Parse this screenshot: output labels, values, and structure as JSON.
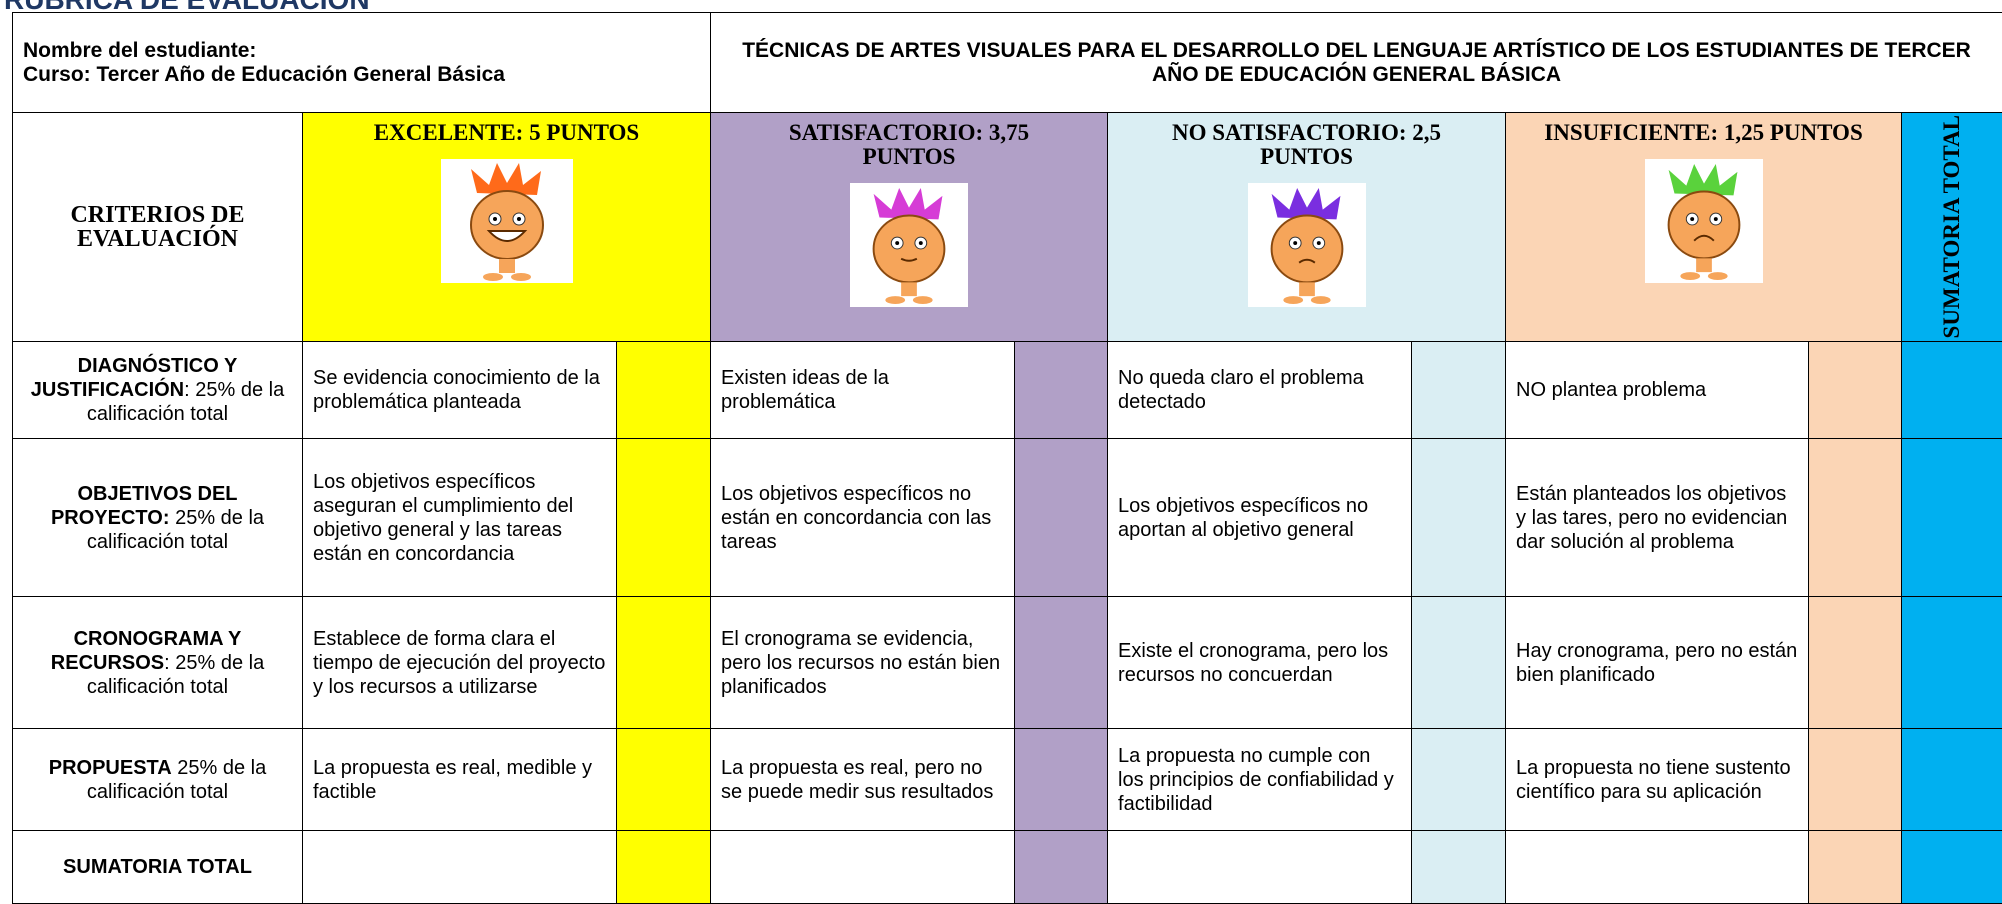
{
  "page_title": "RÚBRICA DE EVALUACIÓN",
  "header": {
    "student": "Nombre del estudiante:",
    "course": "Curso: Tercer Año de Educación General Básica",
    "title": "TÉCNICAS DE ARTES VISUALES PARA EL DESARROLLO DEL LENGUAJE ARTÍSTICO DE LOS ESTUDIANTES DE TERCER AÑO DE EDUCACIÓN GENERAL BÁSICA"
  },
  "criteria_header": "CRITERIOS DE EVALUACIÓN",
  "total_header": "SUMATORIA TOTAL",
  "total_color": "#00b0f0",
  "levels": [
    {
      "label": "EXCELENTE: 5 PUNTOS",
      "color": "#ffff00"
    },
    {
      "label": "SATISFACTORIO: 3,75 PUNTOS",
      "color": "#b1a0c7"
    },
    {
      "label": "NO SATISFACTORIO: 2,5 PUNTOS",
      "color": "#daeef3"
    },
    {
      "label": "INSUFICIENTE: 1,25 PUNTOS",
      "color": "#fbd5b5"
    }
  ],
  "rows": [
    {
      "criterion": "DIAGNÓSTICO Y JUSTIFICACIÓN",
      "weight": ": 25% de la calificación total",
      "descriptors": [
        "Se evidencia conocimiento de la problemática planteada",
        "Existen ideas de la problemática",
        "No queda claro el problema detectado",
        "NO plantea problema"
      ]
    },
    {
      "criterion": "OBJETIVOS DEL PROYECTO:",
      "weight": " 25% de la calificación total",
      "descriptors": [
        "Los objetivos específicos aseguran el cumplimiento del objetivo general y las tareas están en concordancia",
        "Los objetivos específicos no están en concordancia con las tareas",
        "Los objetivos específicos no aportan al objetivo general",
        "Están planteados los objetivos y las tares, pero no evidencian dar solución al problema"
      ]
    },
    {
      "criterion": "CRONOGRAMA Y RECURSOS",
      "weight": ": 25% de la calificación total",
      "descriptors": [
        "Establece de forma clara el tiempo de ejecución del proyecto y los recursos a utilizarse",
        "El cronograma se evidencia, pero los recursos no están bien planificados",
        "Existe el cronograma, pero los recursos no concuerdan",
        "Hay cronograma, pero no están bien planificado"
      ]
    },
    {
      "criterion": "PROPUESTA",
      "weight": " 25% de la calificación total",
      "descriptors": [
        "La propuesta es real, medible y factible",
        "La propuesta es real, pero no se puede medir sus resultados",
        "La propuesta no cumple con los principios de confiabilidad y factibilidad",
        "La propuesta no tiene sustento científico para su aplicación"
      ]
    }
  ],
  "footer": "SUMATORIA TOTAL"
}
